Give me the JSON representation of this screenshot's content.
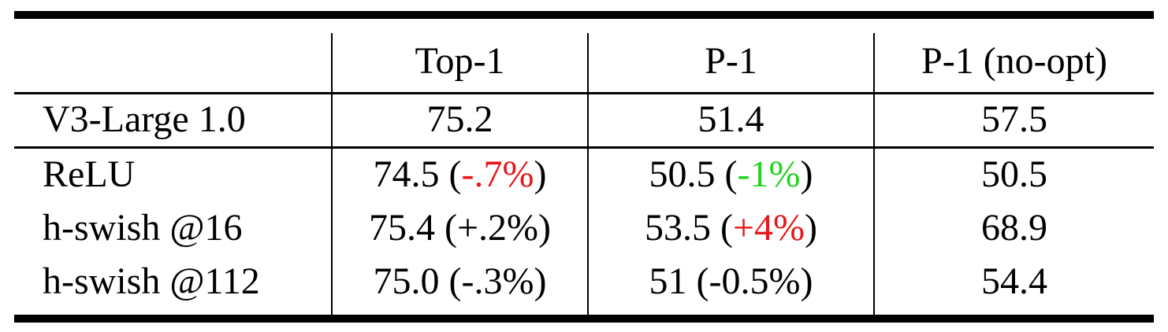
{
  "table": {
    "headers": {
      "col0": "",
      "col1": "Top-1",
      "col2": "P-1",
      "col3": "P-1 (no-opt)"
    },
    "baseline": {
      "label": "V3-Large 1.0",
      "top1": "75.2",
      "p1": "51.4",
      "p1_noopt": "57.5"
    },
    "rows": [
      {
        "label": "ReLU",
        "top1_value": "74.5",
        "top1_delta": "-.7%",
        "top1_delta_color": "red",
        "p1_value": "50.5",
        "p1_delta": "-1%",
        "p1_delta_color": "green",
        "p1_noopt": "50.5"
      },
      {
        "label": "h-swish @16",
        "top1_value": "75.4",
        "top1_delta": "+.2%",
        "top1_delta_color": "black",
        "p1_value": "53.5",
        "p1_delta": "+4%",
        "p1_delta_color": "red",
        "p1_noopt": "68.9"
      },
      {
        "label": "h-swish @112",
        "top1_value": "75.0",
        "top1_delta": "-.3%",
        "top1_delta_color": "black",
        "p1_value": "51",
        "p1_delta": "-0.5%",
        "p1_delta_color": "black",
        "p1_noopt": "54.4"
      }
    ],
    "colors": {
      "red": "#e8161a",
      "green": "#22d422",
      "black": "#000000"
    }
  }
}
